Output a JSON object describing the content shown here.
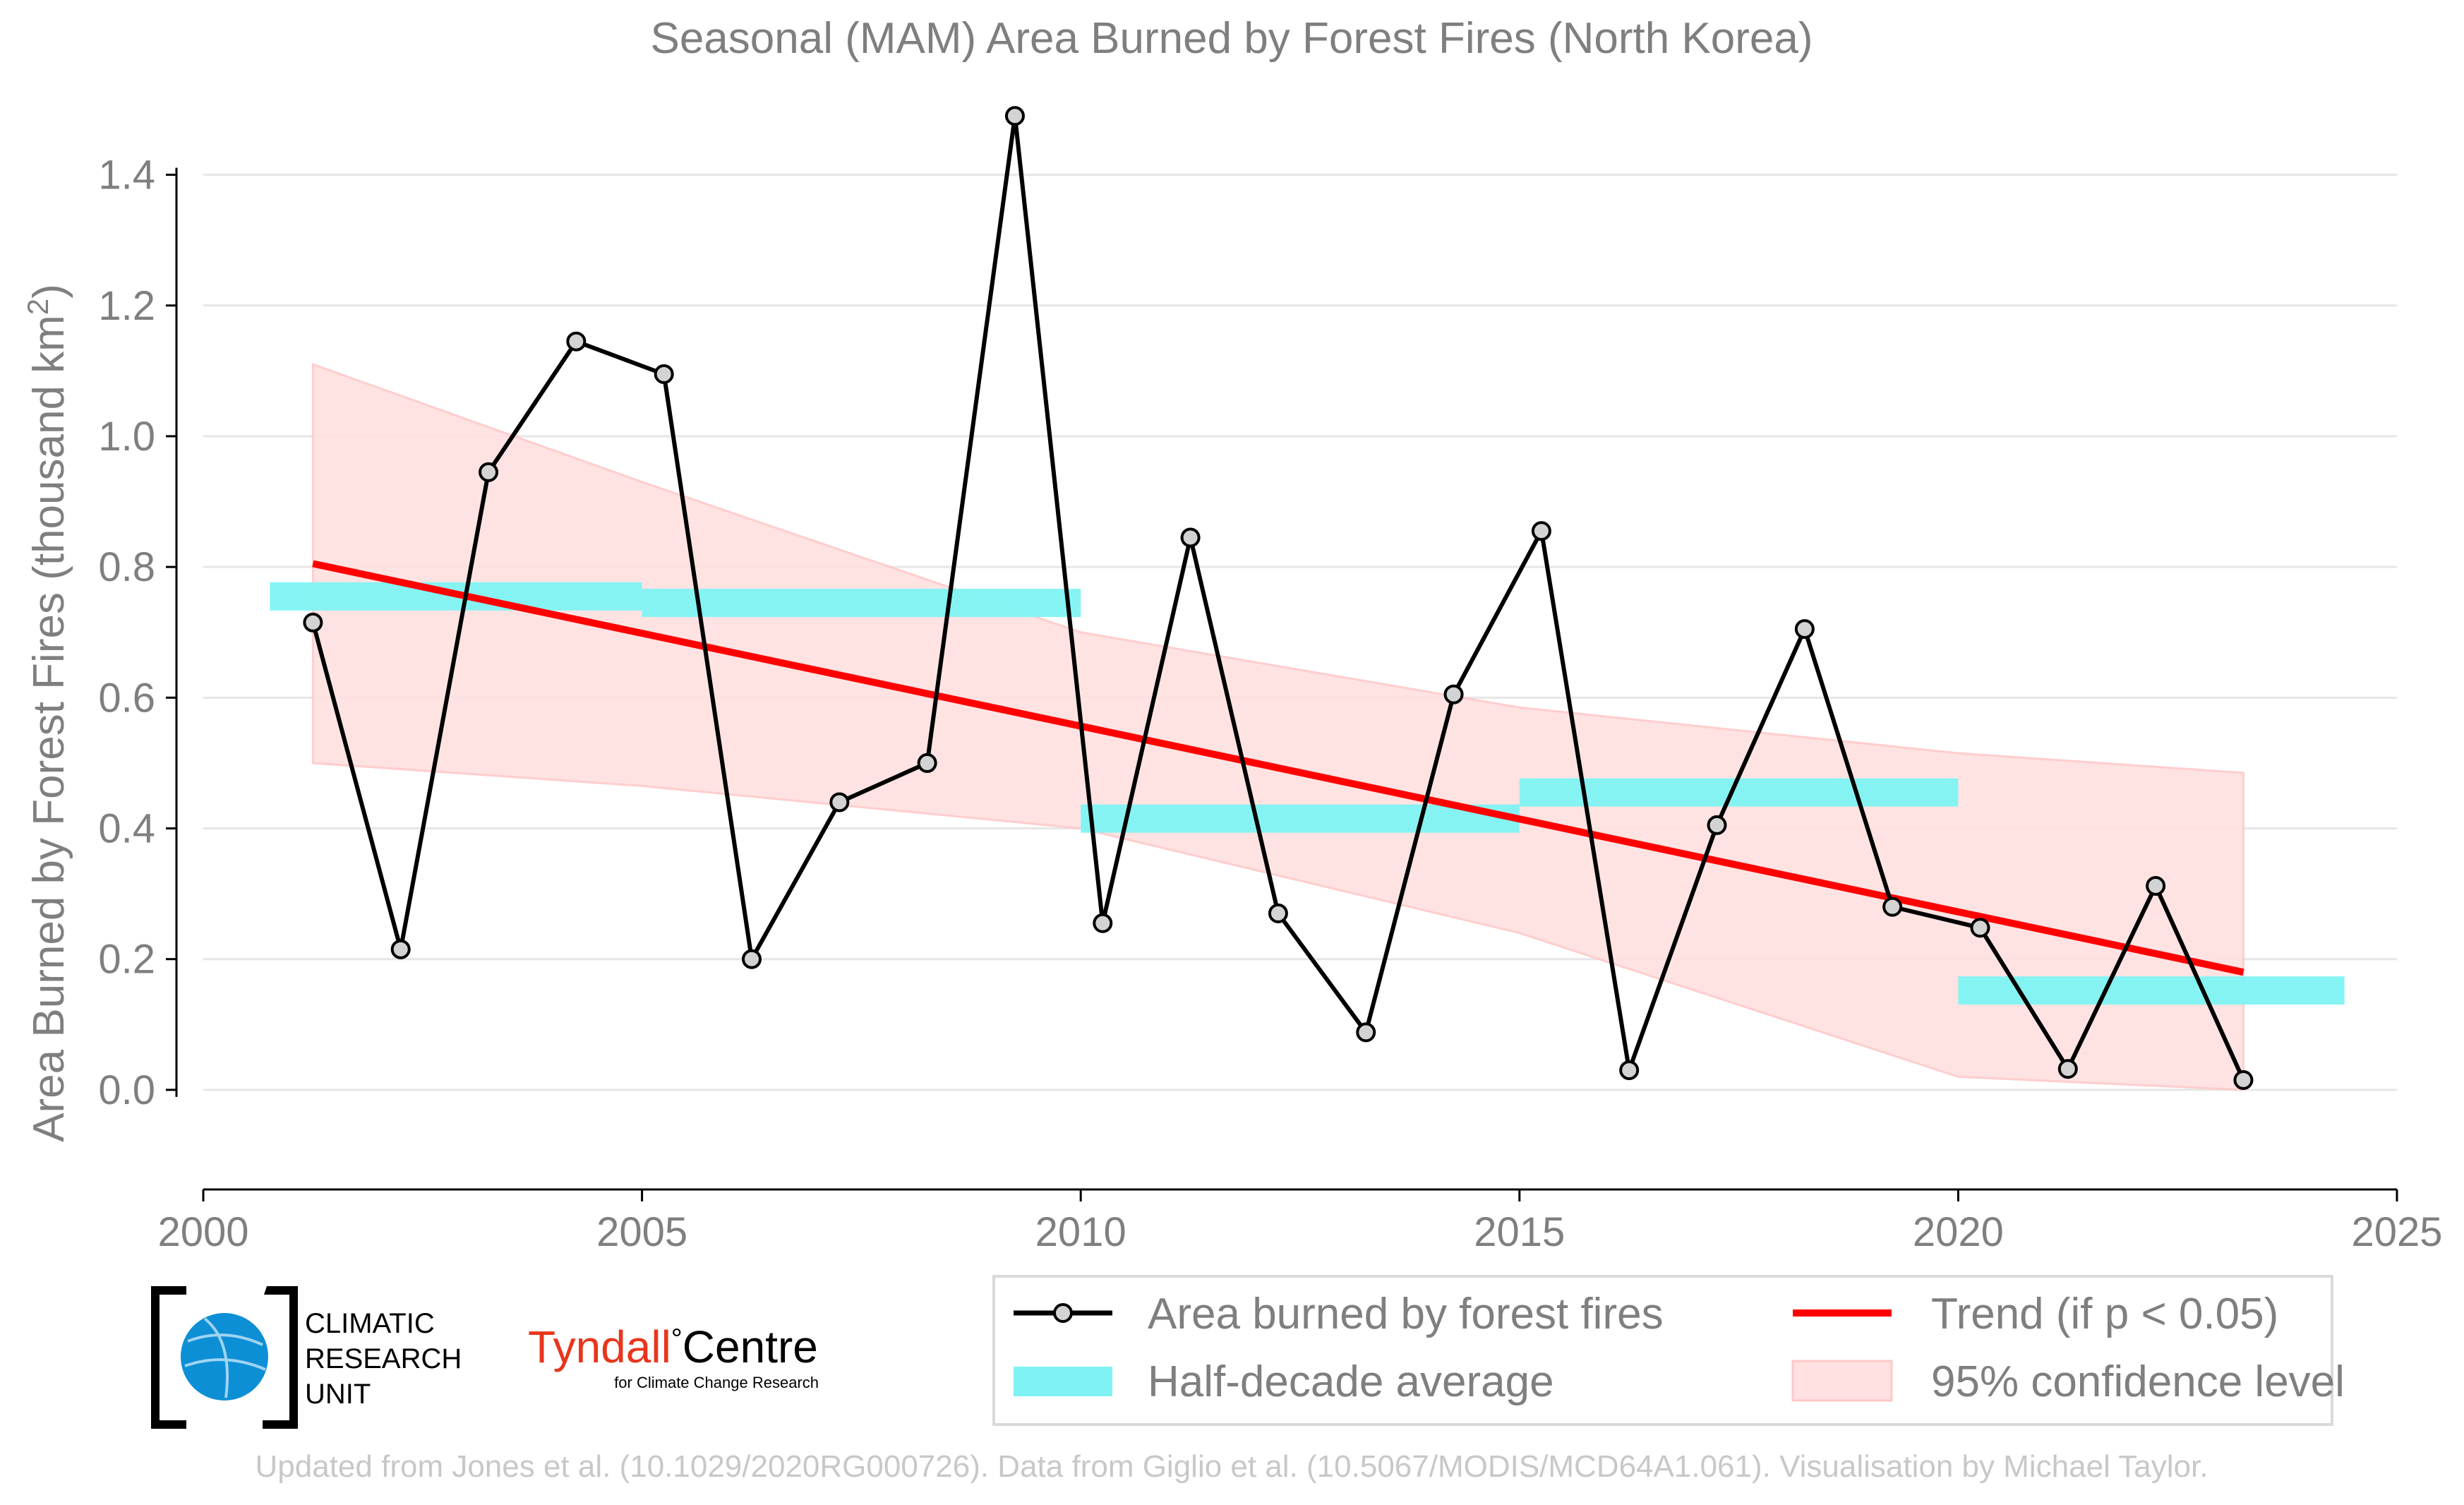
{
  "chart_data": {
    "type": "line",
    "title": "Seasonal (MAM) Area Burned by Forest Fires (North Korea)",
    "ylabel_main": "Area Burned by Forest Fires (thousand km",
    "ylabel_sup": "2",
    "ylabel_close": ")",
    "xlim": [
      2000,
      2025
    ],
    "ylim": [
      -0.12,
      1.5
    ],
    "x_ticks": [
      2000,
      2005,
      2010,
      2015,
      2020,
      2025
    ],
    "y_ticks": [
      0.0,
      0.2,
      0.4,
      0.6,
      0.8,
      1.0,
      1.2,
      1.4
    ],
    "y_tick_labels": [
      "0.0",
      "0.2",
      "0.4",
      "0.6",
      "0.8",
      "1.0",
      "1.2",
      "1.4"
    ],
    "grid": "horizontal",
    "legend_position": "bottom-right",
    "series": {
      "x": [
        2001.25,
        2002.25,
        2003.25,
        2004.25,
        2005.25,
        2006.25,
        2007.25,
        2008.25,
        2009.25,
        2010.25,
        2011.25,
        2012.25,
        2013.25,
        2014.25,
        2015.25,
        2016.25,
        2017.25,
        2018.25,
        2019.25,
        2020.25,
        2021.25,
        2022.25,
        2023.25
      ],
      "values": [
        0.715,
        0.215,
        0.945,
        1.145,
        1.095,
        0.2,
        0.44,
        0.5,
        1.49,
        0.255,
        0.845,
        0.27,
        0.088,
        0.605,
        0.855,
        0.03,
        0.405,
        0.705,
        0.28,
        0.248,
        0.032,
        0.312,
        0.015
      ],
      "color": "#000000",
      "marker_color": "#d3d3d3"
    },
    "half_decade_average": [
      {
        "x_start": 2001,
        "x_end": 2005,
        "value": 0.755
      },
      {
        "x_start": 2005,
        "x_end": 2010,
        "value": 0.745
      },
      {
        "x_start": 2010,
        "x_end": 2015,
        "value": 0.415
      },
      {
        "x_start": 2015,
        "x_end": 2020,
        "value": 0.455
      },
      {
        "x_start": 2020,
        "x_end": 2024,
        "value": 0.152
      }
    ],
    "half_decade_color": "#7ff3f3",
    "trend": {
      "x_start": 2001.25,
      "x_end": 2023.25,
      "y_start": 0.805,
      "y_end": 0.18,
      "color": "#ff0000"
    },
    "confidence_band": {
      "x": [
        2001.25,
        2005,
        2010,
        2015,
        2020,
        2023.25
      ],
      "upper": [
        1.11,
        0.93,
        0.7,
        0.585,
        0.515,
        0.485
      ],
      "lower": [
        0.5,
        0.465,
        0.4,
        0.24,
        0.02,
        0.0
      ],
      "color": "#ffe1e1"
    },
    "legend": [
      {
        "key": "line",
        "label": "Area burned by forest fires"
      },
      {
        "key": "trend",
        "label": "Trend (if p < 0.05)"
      },
      {
        "key": "avg",
        "label": "Half-decade average"
      },
      {
        "key": "band",
        "label": "95% confidence level"
      }
    ]
  },
  "logos": {
    "cru_line1": "CLIMATIC",
    "cru_line2": "RESEARCH",
    "cru_line3": "UNIT",
    "tyndall_main": "Tyndall",
    "tyndall_degree": "°",
    "tyndall_centre": "Centre",
    "tyndall_sub": "for Climate Change Research"
  },
  "footer": "Updated from Jones et al. (10.1029/2020RG000726). Data from Giglio et al. (10.5067/MODIS/MCD64A1.061). Visualisation by Michael Taylor."
}
